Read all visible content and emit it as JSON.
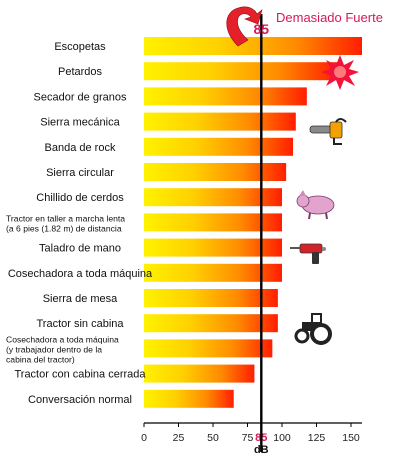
{
  "chart_data": {
    "type": "bar",
    "orientation": "horizontal",
    "categories": [
      [
        "Escopetas"
      ],
      [
        "Petardos"
      ],
      [
        "Secador de granos"
      ],
      [
        "Sierra mecánica"
      ],
      [
        "Banda de rock"
      ],
      [
        "Sierra circular"
      ],
      [
        "Chillido de cerdos"
      ],
      [
        "Tractor en taller a marcha lenta",
        "(a 6 pies (1.82 m) de distancia"
      ],
      [
        "Taladro de mano"
      ],
      [
        "Cosechadora a toda máquina"
      ],
      [
        "Sierra de mesa"
      ],
      [
        "Tractor sin cabina"
      ],
      [
        "Cosechadora a toda máquina",
        "(y trabajador dentro de la",
        "cabina del tractor)"
      ],
      [
        "Tractor con cabina cerrada"
      ],
      [
        "Conversación normal"
      ]
    ],
    "values": [
      160,
      140,
      118,
      110,
      108,
      103,
      100,
      100,
      100,
      100,
      97,
      97,
      93,
      80,
      65
    ],
    "xlabel": "dB",
    "xlim": [
      0,
      160
    ],
    "xticks": [
      "0",
      "25",
      "50",
      "75",
      "85",
      "100",
      "125",
      "150"
    ],
    "xtick_values": [
      0,
      25,
      50,
      75,
      85,
      100,
      125,
      150
    ],
    "reference_line": {
      "value": 85,
      "label": "85"
    },
    "danger_annotation": {
      "value_label": "85",
      "text": "Demasiado Fuerte"
    },
    "icons": [
      "explosion-icon",
      "chainsaw-icon",
      "pig-icon",
      "drill-icon",
      "tractor-icon"
    ],
    "bar_gradient": [
      "#ffe600",
      "#ff2a00"
    ],
    "accent_color": "#d9175c"
  }
}
